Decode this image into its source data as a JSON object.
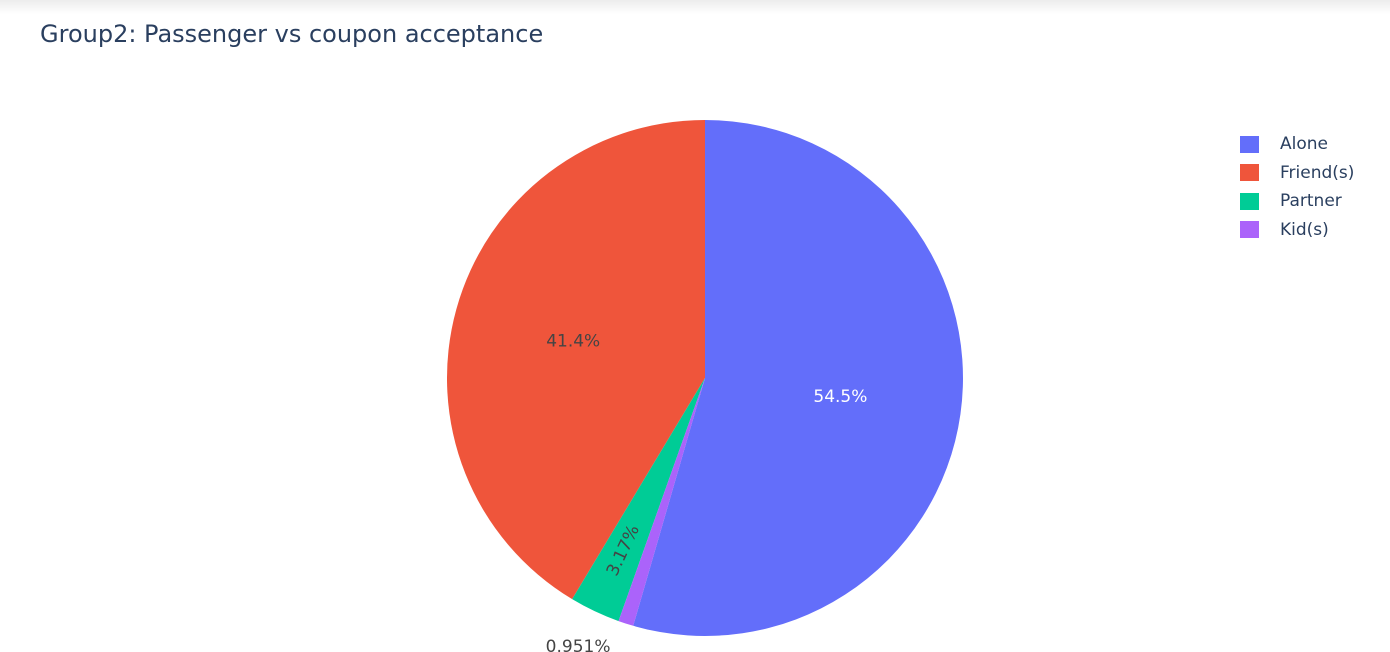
{
  "chart_data": {
    "type": "pie",
    "title": "Group2: Passenger vs coupon acceptance",
    "labels": [
      "Alone",
      "Friend(s)",
      "Partner",
      "Kid(s)"
    ],
    "values": [
      54.5,
      41.4,
      3.17,
      0.951
    ],
    "text_labels": [
      "54.5%",
      "41.4%",
      "3.17%",
      "0.951%"
    ],
    "colors": [
      "#636efa",
      "#ef553b",
      "#00cc96",
      "#ab63fa"
    ],
    "sort": "clockwise from top",
    "legend": {
      "position": "right",
      "items": [
        {
          "label": "Alone",
          "color": "#636efa"
        },
        {
          "label": "Friend(s)",
          "color": "#ef553b"
        },
        {
          "label": "Partner",
          "color": "#00cc96"
        },
        {
          "label": "Kid(s)",
          "color": "#ab63fa"
        }
      ]
    }
  }
}
